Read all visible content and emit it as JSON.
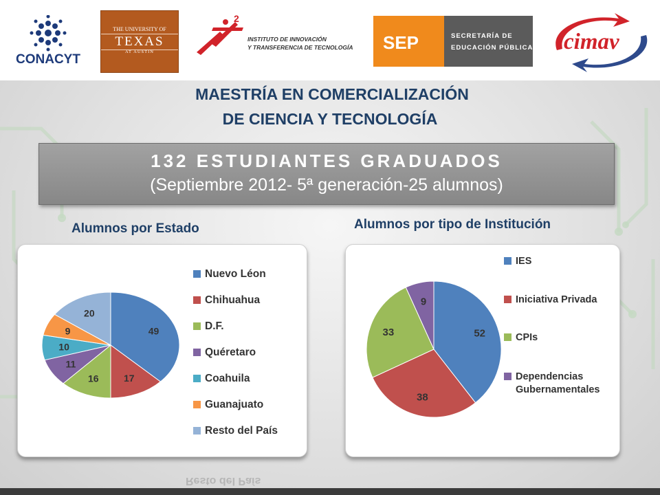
{
  "logos": {
    "conacyt": {
      "text": "CONACYT",
      "color": "#1d3a7a"
    },
    "texas": {
      "line1": "THE UNIVERSITY OF",
      "line2": "TEXAS",
      "line3": "AT AUSTIN",
      "color": "#b35a1f"
    },
    "iit": {
      "line1": "INSTITUTO DE INNOVACIÓN",
      "line2": "Y TRANSFERENCIA DE TECNOLOGÍA",
      "color": "#d1232a"
    },
    "sep": {
      "acronym": "SEP",
      "line1": "SECRETARÍA DE",
      "line2": "EDUCACIÓN PÚBLICA",
      "color": "#f08a1c"
    },
    "cimav": {
      "text": "cimav",
      "color": "#d1232a"
    }
  },
  "heading": {
    "line1": "MAESTRÍA EN COMERCIALIZACIÓN",
    "line2": "DE CIENCIA Y TECNOLOGÍA"
  },
  "banner": {
    "line1": "132 ESTUDIANTES  GRADUADOS",
    "line2": "(Septiembre 2012- 5ª generación-25 alumnos)"
  },
  "chart_data": [
    {
      "type": "pie",
      "title": "Alumnos por Estado",
      "categories": [
        "Nuevo Léon",
        "Chihuahua",
        "D.F.",
        "Quéretaro",
        "Coahuila",
        "Guanajuato",
        "Resto del País"
      ],
      "values": [
        49,
        17,
        16,
        11,
        10,
        9,
        20
      ],
      "colors": [
        "#4f81bd",
        "#c0504d",
        "#9bbb59",
        "#8064a2",
        "#4bacc6",
        "#f79646",
        "#95b3d7"
      ],
      "legend": "right"
    },
    {
      "type": "pie",
      "title": "Alumnos por tipo de Institución",
      "categories": [
        "IES",
        "Iniciativa Privada",
        "CPIs",
        "Dependencias Gubernamentales"
      ],
      "values": [
        52,
        38,
        33,
        9
      ],
      "colors": [
        "#4f81bd",
        "#c0504d",
        "#9bbb59",
        "#8064a2"
      ],
      "legend": "right"
    }
  ]
}
